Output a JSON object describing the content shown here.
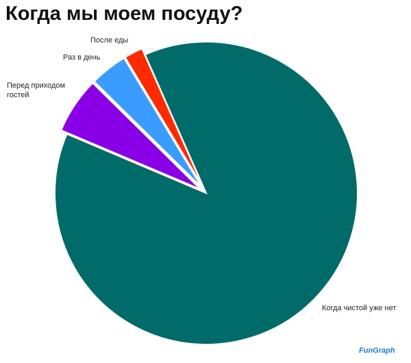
{
  "chart_data": {
    "type": "pie",
    "title": "Когда мы моем посуду?",
    "categories": [
      "Перед приходом гостей",
      "Раз в день",
      "После еды",
      "Когда чистой уже нет"
    ],
    "values": [
      6,
      4,
      2,
      88
    ],
    "colors": [
      "#8a00e6",
      "#3a9cff",
      "#ff2a00",
      "#006b68"
    ],
    "exploded": [
      true,
      true,
      true,
      false
    ],
    "watermark": "FunGraph"
  }
}
